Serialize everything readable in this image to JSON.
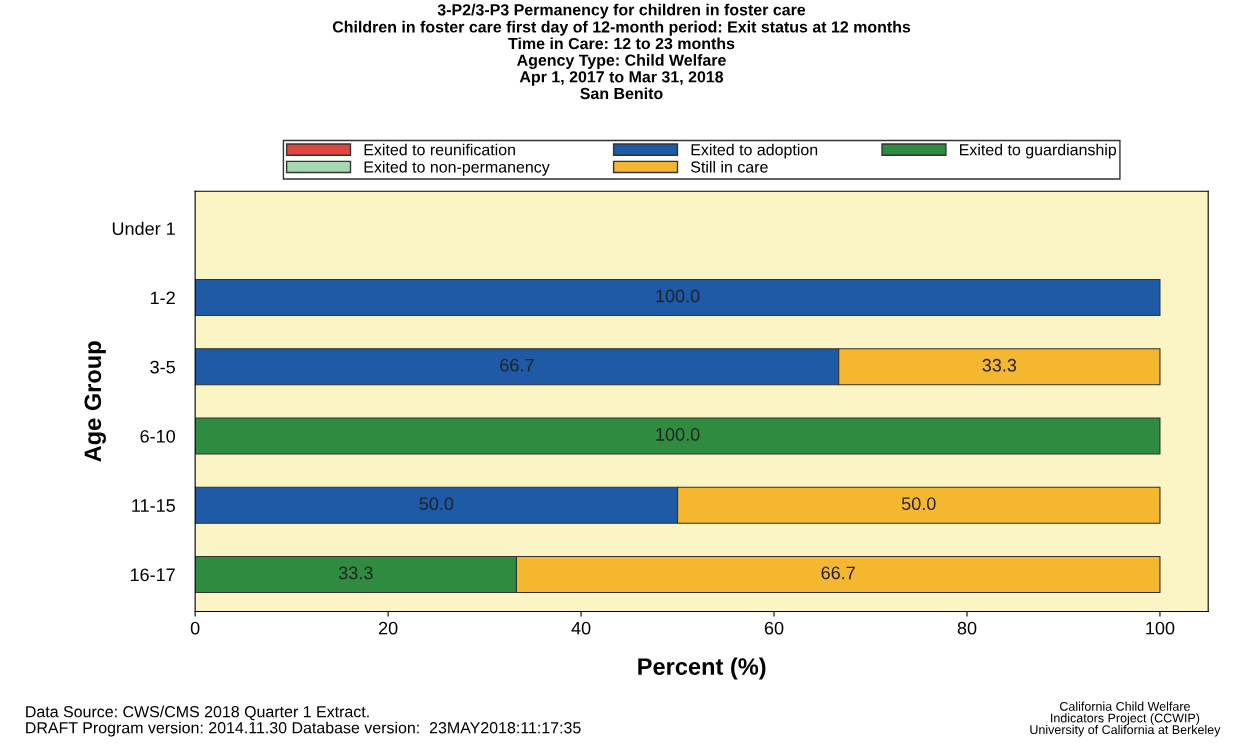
{
  "chart_data": {
    "type": "bar",
    "orientation": "horizontal",
    "stacked": true,
    "title": "3-P2/3-P3 Permanency for children in foster care",
    "subtitle": "Children in foster care first day of 12-month period: Exit status at 12 months\nTime in Care: 12 to 23 months\nAgency Type: Child Welfare\nApr 1, 2017 to Mar 31, 2018\nSan Benito",
    "xlabel": "Percent (%)",
    "ylabel": "Age Group",
    "categories": [
      "Under 1",
      "1-2",
      "3-5",
      "6-10",
      "11-15",
      "16-17"
    ],
    "series": [
      {
        "name": "Exited to reunification",
        "color": "#e0453f",
        "values": [
          null,
          null,
          null,
          null,
          null,
          null
        ]
      },
      {
        "name": "Exited to adoption",
        "color": "#1f5aa6",
        "values": [
          null,
          100,
          66.7,
          null,
          50,
          null
        ],
        "value_labels": [
          null,
          "100.0",
          "66.7",
          null,
          "50.0",
          null
        ]
      },
      {
        "name": "Exited to guardianship",
        "color": "#2e8b40",
        "values": [
          null,
          null,
          null,
          100,
          null,
          33.3
        ],
        "value_labels": [
          null,
          null,
          null,
          "100.0",
          null,
          "33.3"
        ]
      },
      {
        "name": "Exited to non-permanency",
        "color": "#a6d9b0",
        "values": [
          null,
          null,
          null,
          null,
          null,
          null
        ]
      },
      {
        "name": "Still in care",
        "color": "#f5b630",
        "values": [
          null,
          null,
          33.3,
          null,
          50,
          66.7
        ],
        "value_labels": [
          null,
          null,
          "33.3",
          null,
          "50.0",
          "66.7"
        ]
      }
    ],
    "xlim": [
      0,
      105
    ],
    "xticks": [
      0,
      20,
      40,
      60,
      80,
      100
    ],
    "grid": false,
    "legend": "top",
    "annotations": [
      "Data Source: CWS/CMS 2018 Quarter 1 Extract.\nDRAFT Program version: 2014.11.30 Database version:  23MAY2018:11:17:35",
      "California Child Welfare\nIndicators Project (CCWIP)\nUniversity of California at Berkeley"
    ]
  }
}
